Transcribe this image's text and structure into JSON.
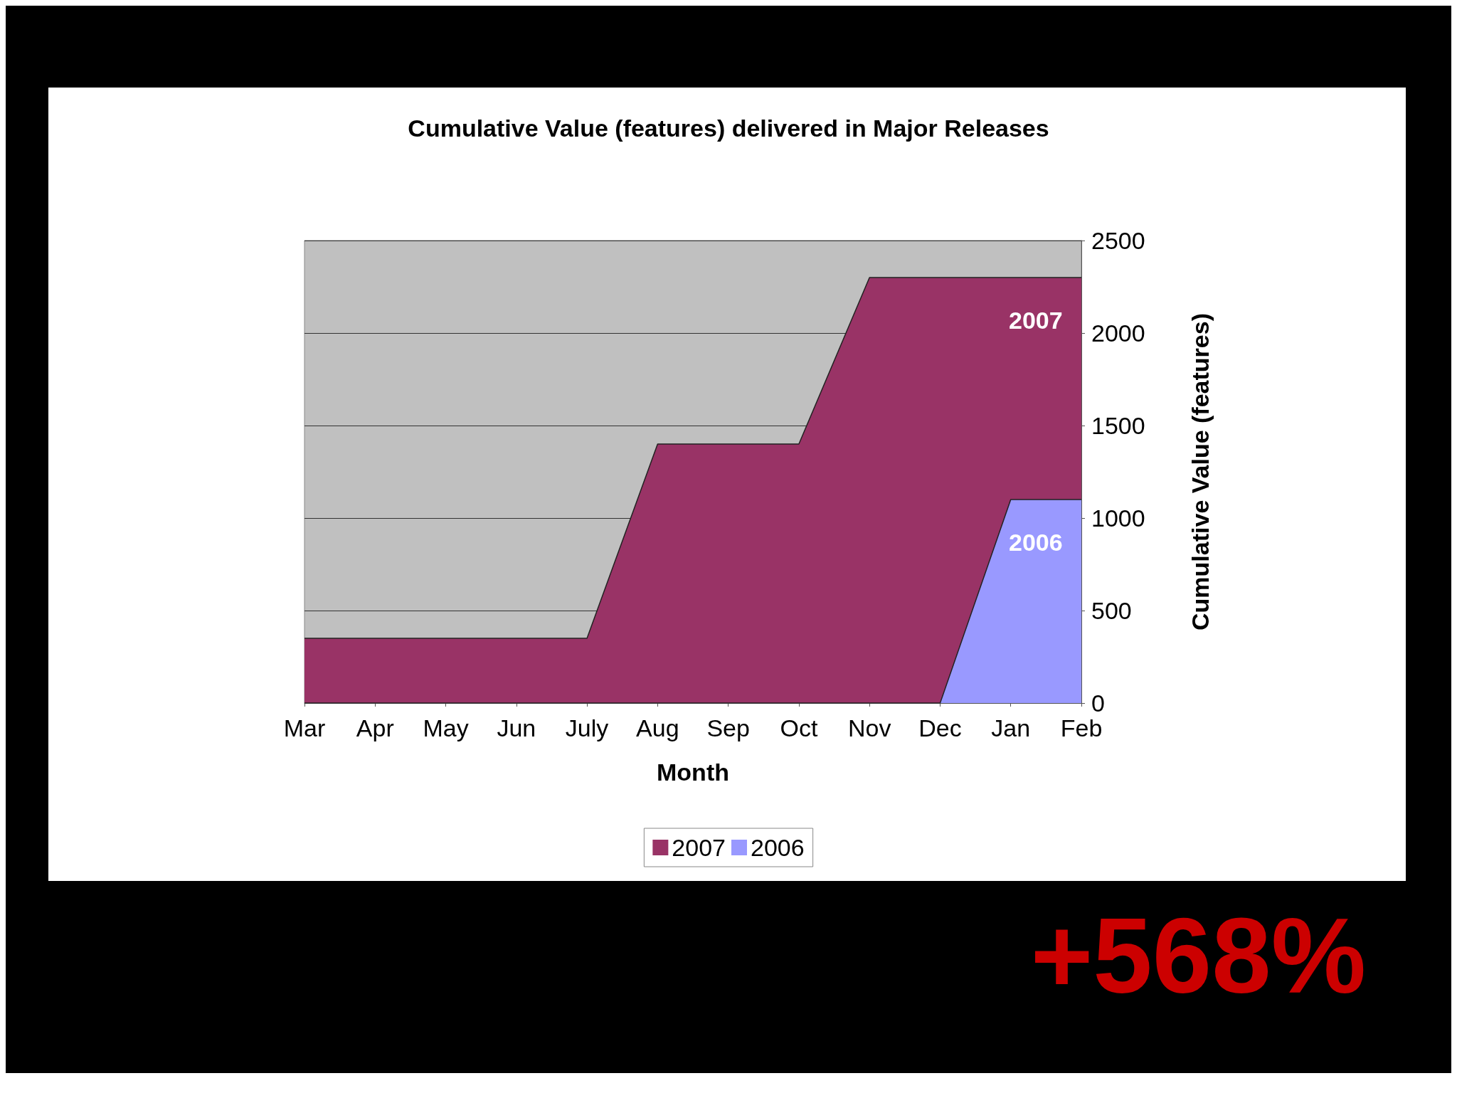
{
  "chart_data": {
    "type": "area",
    "title": "Cumulative Value (features) delivered in Major Releases",
    "xlabel": "Month",
    "ylabel": "Cumulative Value (features)",
    "categories": [
      "Mar",
      "Apr",
      "May",
      "Jun",
      "July",
      "Aug",
      "Sep",
      "Oct",
      "Nov",
      "Dec",
      "Jan",
      "Feb"
    ],
    "series": [
      {
        "name": "2007",
        "color": "#993366",
        "values": [
          350,
          350,
          350,
          350,
          350,
          1400,
          1400,
          1400,
          2300,
          2300,
          2300,
          2300
        ]
      },
      {
        "name": "2006",
        "color": "#9999ff",
        "values": [
          0,
          0,
          0,
          0,
          0,
          0,
          0,
          0,
          0,
          0,
          1100,
          1100
        ]
      }
    ],
    "ylim": [
      0,
      2500
    ],
    "yticks": [
      0,
      500,
      1000,
      1500,
      2000,
      2500
    ],
    "grid": "y",
    "legend": "bottom",
    "annotations": [
      "+568%"
    ]
  }
}
